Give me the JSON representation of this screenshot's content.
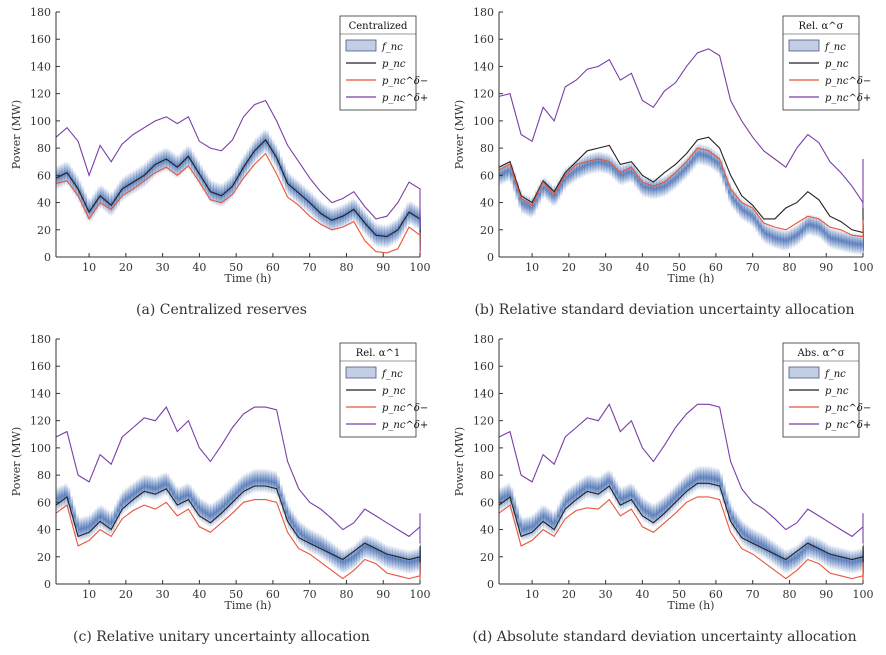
{
  "colors": {
    "band": "#4a72b5",
    "p_nc": "#222222",
    "p_delta_minus": "#e8553c",
    "p_delta_plus": "#7a3fa8",
    "axis": "#333333"
  },
  "legend_labels": [
    "f_nc",
    "p_nc",
    "p_nc^δ−",
    "p_nc^δ+"
  ],
  "chart_data": [
    {
      "type": "line",
      "title": "",
      "caption": "(a) Centralized reserves",
      "legend_title": "Centralized",
      "xlabel": "Time (h)",
      "ylabel": "Power (MW)",
      "xlim": [
        1,
        100
      ],
      "ylim": [
        0,
        180
      ],
      "xticks": [
        10,
        20,
        30,
        40,
        50,
        60,
        70,
        80,
        90,
        100
      ],
      "yticks": [
        0,
        20,
        40,
        60,
        80,
        100,
        120,
        140,
        160,
        180
      ],
      "grid": false,
      "legend_position": "top-right",
      "x_step": 3,
      "series": [
        {
          "name": "p_nc",
          "values": [
            58,
            62,
            50,
            33,
            45,
            38,
            50,
            55,
            60,
            68,
            72,
            66,
            74,
            61,
            48,
            45,
            52,
            66,
            78,
            86,
            73,
            54,
            47,
            40,
            32,
            27,
            30,
            35,
            25,
            16,
            15,
            20,
            33,
            28,
            20,
            18,
            11,
            12,
            22,
            28,
            18,
            16,
            22,
            12,
            10,
            10,
            14,
            13,
            12,
            13
          ]
        },
        {
          "name": "p_nc^δ−",
          "values": [
            54,
            56,
            45,
            28,
            40,
            35,
            45,
            50,
            56,
            62,
            66,
            60,
            67,
            55,
            42,
            40,
            46,
            58,
            68,
            76,
            61,
            44,
            38,
            30,
            24,
            20,
            22,
            26,
            12,
            4,
            3,
            6,
            22,
            16,
            6,
            4,
            0,
            2,
            10,
            18,
            8,
            3,
            12,
            3,
            0,
            0,
            2,
            3,
            2,
            4
          ]
        },
        {
          "name": "p_nc^δ+",
          "values": [
            88,
            95,
            85,
            60,
            82,
            70,
            83,
            90,
            95,
            100,
            103,
            98,
            103,
            85,
            80,
            78,
            86,
            103,
            112,
            115,
            100,
            82,
            70,
            58,
            48,
            40,
            43,
            48,
            37,
            28,
            30,
            40,
            55,
            50,
            38,
            32,
            22,
            27,
            40,
            48,
            35,
            32,
            42,
            28,
            22,
            20,
            28,
            28,
            27,
            25
          ]
        },
        {
          "name": "f_nc",
          "center": [
            58,
            62,
            50,
            33,
            45,
            38,
            50,
            55,
            60,
            68,
            72,
            66,
            74,
            61,
            48,
            45,
            52,
            66,
            78,
            86,
            73,
            54,
            47,
            40,
            32,
            27,
            30,
            35,
            25,
            16,
            15,
            20,
            33,
            28,
            20,
            18,
            11,
            12,
            22,
            28,
            18,
            16,
            22,
            12,
            10,
            10,
            14,
            13,
            12,
            13
          ],
          "half_width": 9
        }
      ]
    },
    {
      "type": "line",
      "title": "",
      "caption": "(b) Relative standard deviation uncertainty allocation",
      "legend_title": "Rel. α^σ",
      "xlabel": "Time (h)",
      "ylabel": "Power (MW)",
      "xlim": [
        1,
        100
      ],
      "ylim": [
        0,
        180
      ],
      "xticks": [
        10,
        20,
        30,
        40,
        50,
        60,
        70,
        80,
        90,
        100
      ],
      "yticks": [
        0,
        20,
        40,
        60,
        80,
        100,
        120,
        140,
        160,
        180
      ],
      "grid": false,
      "legend_position": "top-right",
      "x_step": 3,
      "series": [
        {
          "name": "p_nc",
          "values": [
            66,
            70,
            45,
            40,
            56,
            48,
            62,
            70,
            78,
            80,
            82,
            68,
            70,
            60,
            55,
            62,
            68,
            76,
            86,
            88,
            80,
            60,
            45,
            38,
            28,
            28,
            36,
            40,
            48,
            42,
            30,
            26,
            20,
            18,
            32,
            36,
            25,
            22,
            32,
            30,
            24,
            20,
            25,
            22,
            20,
            22
          ]
        },
        {
          "name": "p_nc^δ−",
          "values": [
            64,
            68,
            43,
            38,
            55,
            46,
            60,
            68,
            70,
            72,
            70,
            62,
            66,
            55,
            52,
            55,
            62,
            70,
            80,
            78,
            72,
            50,
            40,
            36,
            25,
            22,
            20,
            25,
            30,
            28,
            22,
            20,
            16,
            15,
            22,
            27,
            20,
            18,
            22,
            24,
            18,
            16,
            20,
            18,
            16,
            18
          ]
        },
        {
          "name": "p_nc^δ+",
          "values": [
            118,
            120,
            90,
            85,
            110,
            100,
            125,
            130,
            138,
            140,
            145,
            130,
            135,
            115,
            110,
            122,
            128,
            140,
            150,
            153,
            148,
            115,
            100,
            88,
            78,
            72,
            66,
            80,
            90,
            84,
            70,
            62,
            52,
            40,
            55,
            72,
            60,
            45,
            62,
            58,
            45,
            38,
            42,
            40,
            38,
            36
          ]
        },
        {
          "name": "f_nc",
          "center": [
            60,
            64,
            40,
            36,
            52,
            44,
            58,
            64,
            68,
            70,
            68,
            60,
            63,
            52,
            50,
            52,
            58,
            66,
            76,
            74,
            68,
            45,
            35,
            30,
            18,
            14,
            12,
            16,
            24,
            22,
            14,
            12,
            10,
            9,
            18,
            22,
            14,
            12,
            16,
            18,
            12,
            10,
            14,
            12,
            10,
            12
          ],
          "half_width": 8
        }
      ]
    },
    {
      "type": "line",
      "title": "",
      "caption": "(c) Relative unitary uncertainty allocation",
      "legend_title": "Rel. α^1",
      "xlabel": "Time (h)",
      "ylabel": "Power (MW)",
      "xlim": [
        1,
        100
      ],
      "ylim": [
        0,
        180
      ],
      "xticks": [
        10,
        20,
        30,
        40,
        50,
        60,
        70,
        80,
        90,
        100
      ],
      "yticks": [
        0,
        20,
        40,
        60,
        80,
        100,
        120,
        140,
        160,
        180
      ],
      "grid": false,
      "legend_position": "top-right",
      "x_step": 3,
      "series": [
        {
          "name": "p_nc",
          "values": [
            58,
            64,
            35,
            38,
            46,
            40,
            55,
            62,
            68,
            66,
            70,
            58,
            62,
            50,
            45,
            52,
            60,
            68,
            72,
            72,
            70,
            46,
            34,
            30,
            26,
            22,
            18,
            24,
            30,
            26,
            22,
            20,
            18,
            20,
            28,
            24,
            18,
            16,
            22,
            20,
            15,
            14,
            18,
            20
          ]
        },
        {
          "name": "p_nc^δ−",
          "values": [
            52,
            58,
            28,
            32,
            40,
            35,
            48,
            54,
            58,
            55,
            60,
            50,
            55,
            42,
            38,
            45,
            52,
            60,
            62,
            62,
            60,
            38,
            26,
            22,
            16,
            10,
            4,
            10,
            18,
            15,
            8,
            6,
            4,
            6,
            16,
            12,
            4,
            2,
            8,
            10,
            2,
            2,
            6,
            8
          ]
        },
        {
          "name": "p_nc^δ+",
          "values": [
            108,
            112,
            80,
            75,
            95,
            88,
            108,
            115,
            122,
            120,
            130,
            112,
            120,
            100,
            90,
            102,
            115,
            125,
            130,
            130,
            128,
            90,
            70,
            60,
            55,
            48,
            40,
            45,
            55,
            50,
            45,
            40,
            35,
            42,
            52,
            45,
            35,
            30,
            40,
            42,
            30,
            32,
            40,
            40
          ]
        },
        {
          "name": "f_nc",
          "center": [
            62,
            66,
            40,
            42,
            50,
            44,
            60,
            66,
            72,
            70,
            74,
            62,
            66,
            55,
            50,
            56,
            64,
            72,
            76,
            76,
            74,
            50,
            38,
            32,
            28,
            22,
            16,
            20,
            28,
            25,
            20,
            18,
            16,
            18,
            24,
            22,
            16,
            14,
            18,
            20,
            12,
            12,
            16,
            18
          ],
          "half_width": 9
        }
      ]
    },
    {
      "type": "line",
      "title": "",
      "caption": "(d) Absolute standard deviation uncertainty allocation",
      "legend_title": "Abs. α^σ",
      "xlabel": "Time (h)",
      "ylabel": "Power (MW)",
      "xlim": [
        1,
        100
      ],
      "ylim": [
        0,
        180
      ],
      "xticks": [
        10,
        20,
        30,
        40,
        50,
        60,
        70,
        80,
        90,
        100
      ],
      "yticks": [
        0,
        20,
        40,
        60,
        80,
        100,
        120,
        140,
        160,
        180
      ],
      "grid": false,
      "legend_position": "top-right",
      "x_step": 3,
      "series": [
        {
          "name": "p_nc",
          "values": [
            58,
            64,
            35,
            38,
            46,
            40,
            55,
            62,
            68,
            66,
            72,
            58,
            62,
            50,
            45,
            52,
            60,
            68,
            74,
            74,
            72,
            46,
            34,
            30,
            26,
            22,
            18,
            24,
            30,
            26,
            22,
            20,
            18,
            20,
            28,
            24,
            18,
            16,
            22,
            20,
            15,
            14,
            18,
            20
          ]
        },
        {
          "name": "p_nc^δ−",
          "values": [
            52,
            58,
            28,
            32,
            40,
            35,
            48,
            54,
            56,
            55,
            62,
            50,
            55,
            42,
            38,
            45,
            52,
            60,
            64,
            64,
            62,
            38,
            26,
            22,
            16,
            10,
            4,
            10,
            18,
            15,
            8,
            6,
            4,
            6,
            16,
            12,
            4,
            2,
            8,
            10,
            2,
            2,
            6,
            8
          ]
        },
        {
          "name": "p_nc^δ+",
          "values": [
            108,
            112,
            80,
            75,
            95,
            88,
            108,
            115,
            122,
            120,
            132,
            112,
            120,
            100,
            90,
            102,
            115,
            125,
            132,
            132,
            130,
            90,
            70,
            60,
            55,
            48,
            40,
            45,
            55,
            50,
            45,
            40,
            35,
            42,
            52,
            45,
            35,
            30,
            40,
            42,
            30,
            32,
            40,
            40
          ]
        },
        {
          "name": "f_nc",
          "center": [
            62,
            66,
            40,
            42,
            50,
            44,
            60,
            66,
            72,
            70,
            76,
            62,
            66,
            55,
            50,
            56,
            64,
            72,
            78,
            78,
            76,
            50,
            38,
            32,
            28,
            22,
            16,
            20,
            28,
            25,
            20,
            18,
            16,
            18,
            24,
            22,
            16,
            14,
            18,
            20,
            12,
            12,
            16,
            18
          ],
          "half_width": 9
        }
      ]
    }
  ]
}
